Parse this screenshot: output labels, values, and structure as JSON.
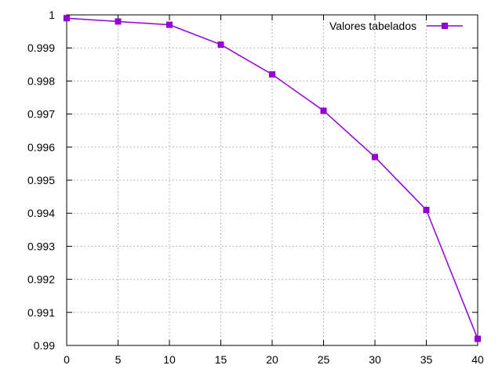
{
  "chart_data": {
    "type": "line",
    "title": "",
    "xlabel": "",
    "ylabel": "",
    "x": [
      0,
      5,
      10,
      15,
      20,
      25,
      30,
      35,
      40
    ],
    "series": [
      {
        "name": "Valores tabelados",
        "values": [
          0.9999,
          0.9998,
          0.9997,
          0.9991,
          0.9982,
          0.9971,
          0.9957,
          0.9941,
          0.9902
        ],
        "color": "#9400d3",
        "marker": "square"
      }
    ],
    "xlim": [
      0,
      40
    ],
    "ylim": [
      0.99,
      1.0
    ],
    "xticks": [
      "0",
      "5",
      "10",
      "15",
      "20",
      "25",
      "30",
      "35",
      "40"
    ],
    "yticks": [
      "0.99",
      "0.991",
      "0.992",
      "0.993",
      "0.994",
      "0.995",
      "0.996",
      "0.997",
      "0.998",
      "0.999",
      "1"
    ],
    "grid": true,
    "legend_position": "top-right"
  }
}
